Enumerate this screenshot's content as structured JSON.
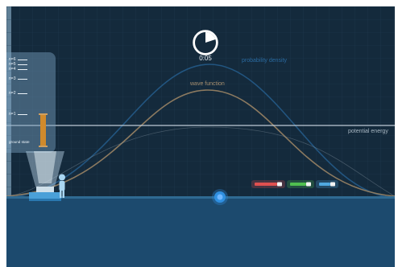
{
  "timer": {
    "label": "0:05",
    "elapsed_fraction": 0.2
  },
  "labels": {
    "probability_density": "probability density",
    "wave_function": "wave function",
    "potential_energy": "potential energy"
  },
  "energy_levels": [
    {
      "label": "n=6"
    },
    {
      "label": "n=5"
    },
    {
      "label": "n=4"
    },
    {
      "label": "n=3"
    },
    {
      "label": "n=2"
    },
    {
      "label": "n=1"
    }
  ],
  "ground_state_label": "ground state",
  "icons": {
    "timer": "stopwatch-icon",
    "projector": "projector-icon",
    "person": "person-icon",
    "photon": "photon-icon",
    "pointers": [
      "red-laser-icon",
      "green-laser-icon",
      "blue-laser-icon"
    ]
  },
  "colors": {
    "background": "#142a3c",
    "floor": "#1c4a6e",
    "probability_density": "#2a6aa0",
    "wave_function": "#a89070",
    "potential_energy": "#a7b6c2",
    "ground_state_bar": "#d08a2c",
    "red_pointer": "#e05050",
    "green_pointer": "#50c050",
    "blue_pointer": "#50a8e0"
  }
}
